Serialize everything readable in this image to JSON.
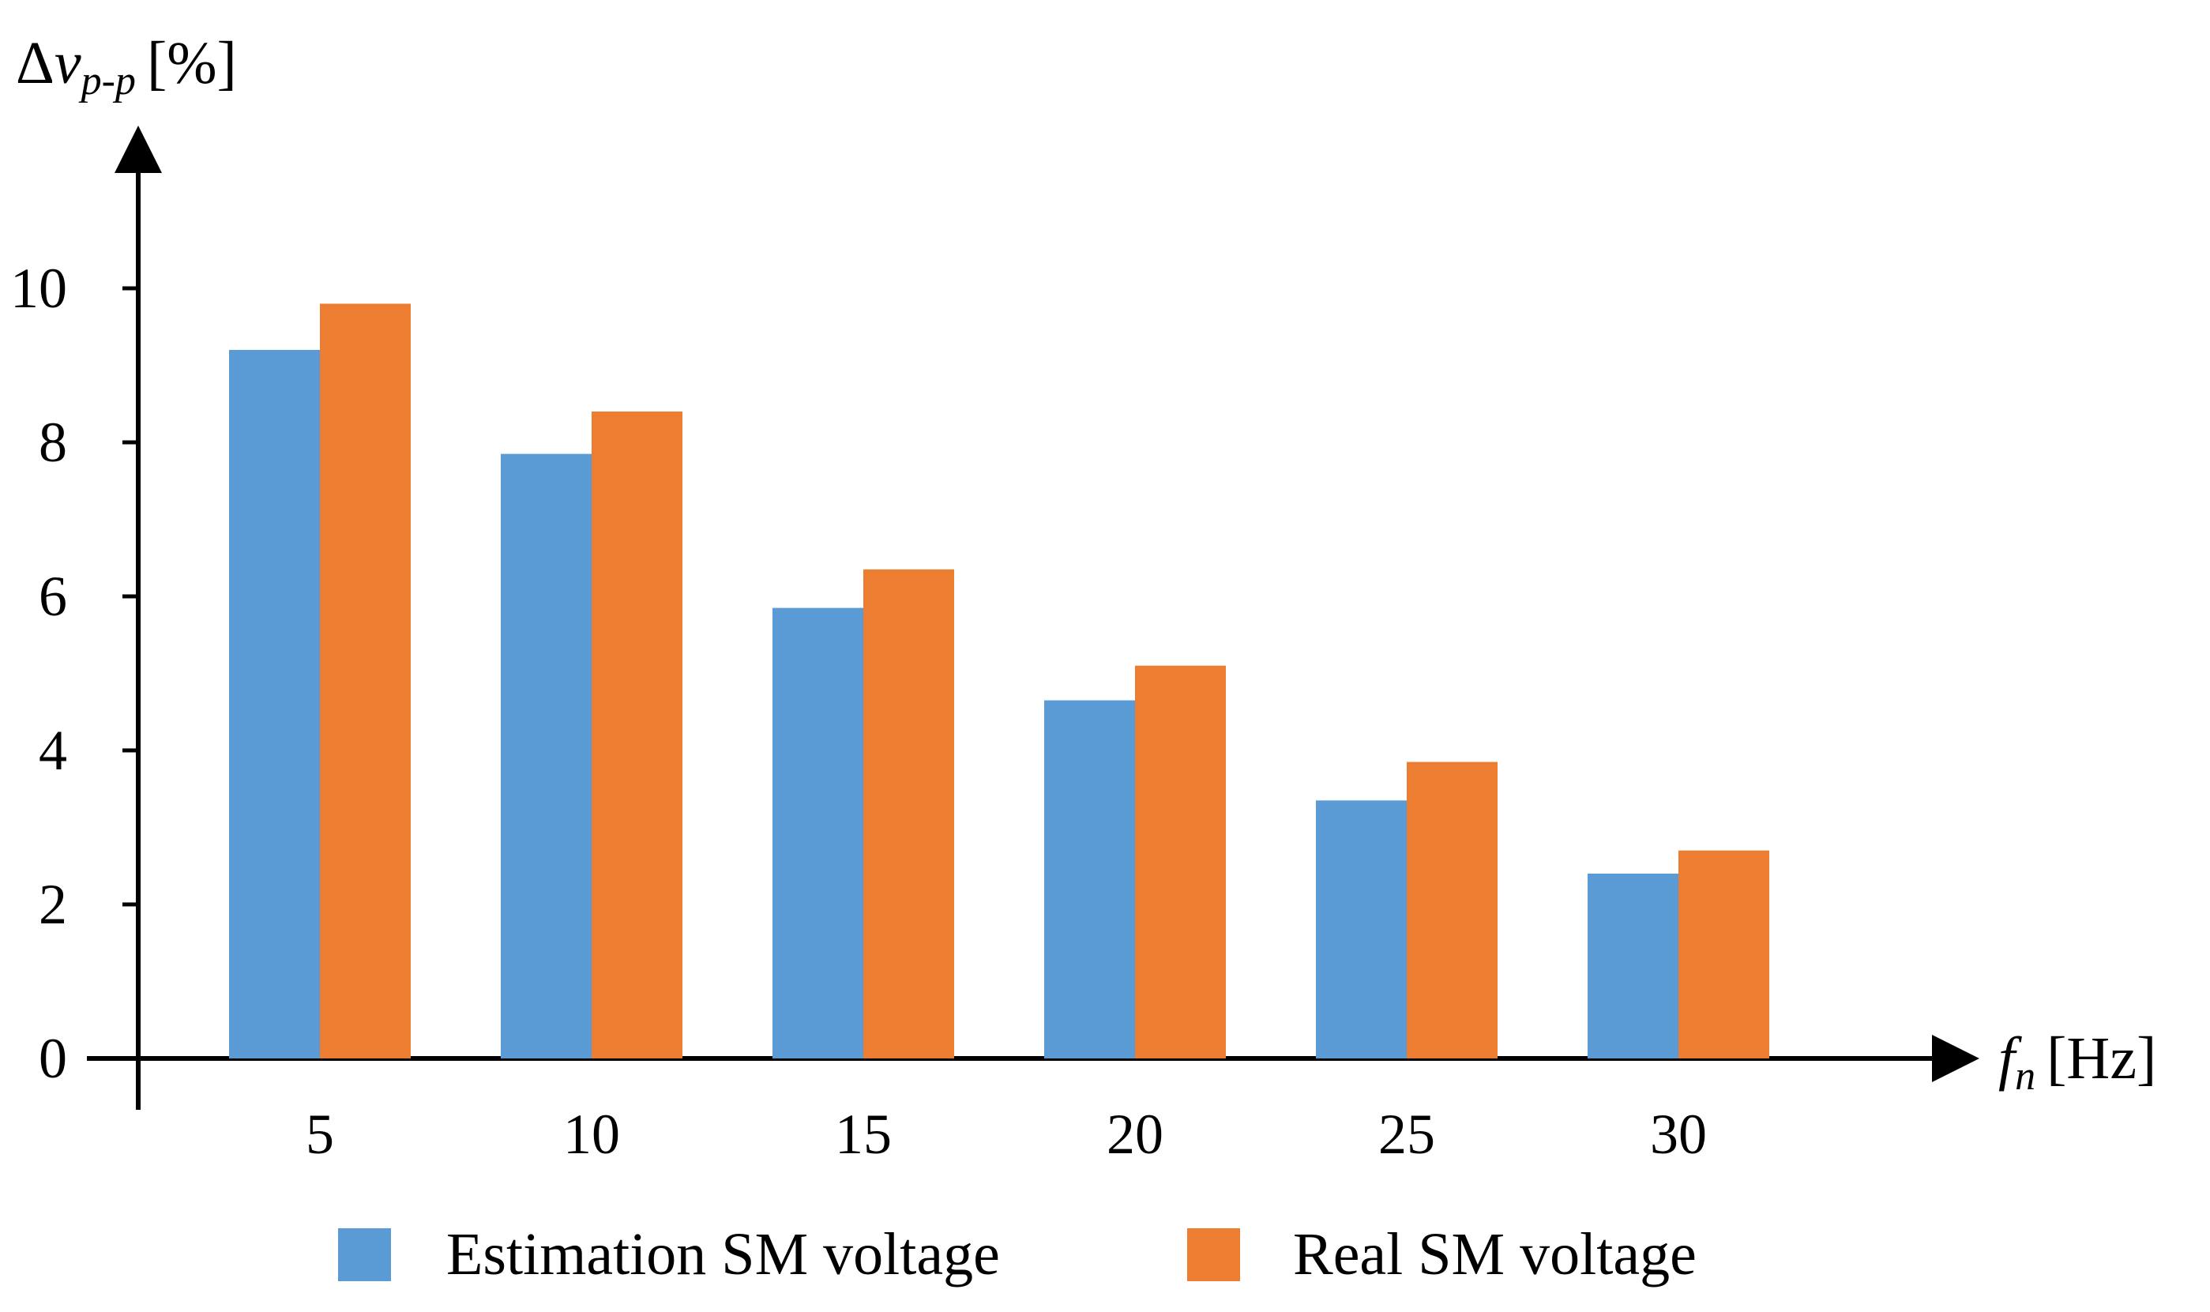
{
  "chart_data": {
    "type": "bar",
    "categories": [
      "5",
      "10",
      "15",
      "20",
      "25",
      "30"
    ],
    "series": [
      {
        "name": "Estimation SM voltage",
        "color": "#5b9bd5",
        "values": [
          9.2,
          7.85,
          5.85,
          4.65,
          3.35,
          2.4
        ]
      },
      {
        "name": "Real SM voltage",
        "color": "#ed7d31",
        "values": [
          9.8,
          8.4,
          6.35,
          5.1,
          3.85,
          2.7
        ]
      }
    ],
    "y_ticks": [
      "0",
      "2",
      "4",
      "6",
      "8",
      "10"
    ],
    "ylim": [
      0,
      12
    ],
    "ylabel": {
      "delta": "Δ",
      "var": "v",
      "sub": "p-p",
      "unit": "[%]"
    },
    "xlabel": {
      "var": "f",
      "sub": "n",
      "unit": "[Hz]"
    },
    "grid": false,
    "legend_position": "bottom-center"
  }
}
